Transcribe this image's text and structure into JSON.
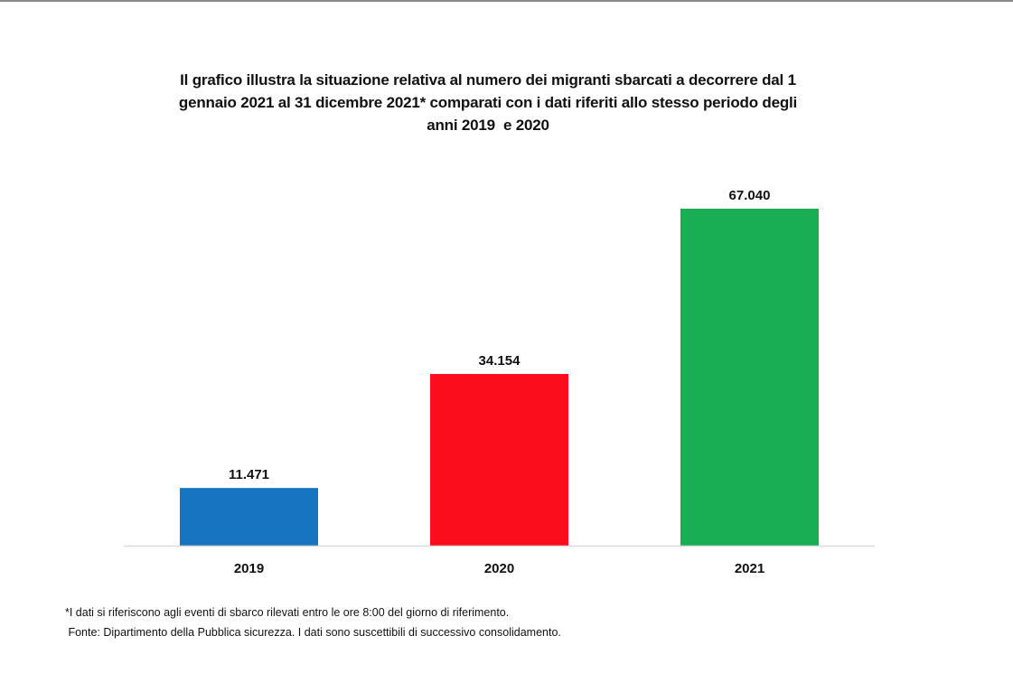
{
  "chart_data": {
    "type": "bar",
    "title_lines": [
      "Il grafico illustra la situazione relativa al numero dei migranti sbarcati a decorrere dal 1",
      "gennaio 2021 al 31 dicembre 2021* comparati con i dati riferiti allo stesso periodo degli",
      "anni 2019  e 2020"
    ],
    "categories": [
      "2019",
      "2020",
      "2021"
    ],
    "values": [
      11471,
      34154,
      67040
    ],
    "data_labels": [
      "11.471",
      "34.154",
      "67.040"
    ],
    "colors": [
      "#1674c0",
      "#fc0d1b",
      "#1aae54"
    ],
    "xlabel": "",
    "ylabel": "",
    "ylim": [
      0,
      67040
    ],
    "grid": false,
    "legend": "none"
  },
  "notes": [
    "*I dati si riferiscono agli eventi di sbarco rilevati entro le ore 8:00 del giorno di riferimento.",
    " Fonte: Dipartimento della Pubblica sicurezza. I dati sono suscettibili di successivo consolidamento."
  ]
}
